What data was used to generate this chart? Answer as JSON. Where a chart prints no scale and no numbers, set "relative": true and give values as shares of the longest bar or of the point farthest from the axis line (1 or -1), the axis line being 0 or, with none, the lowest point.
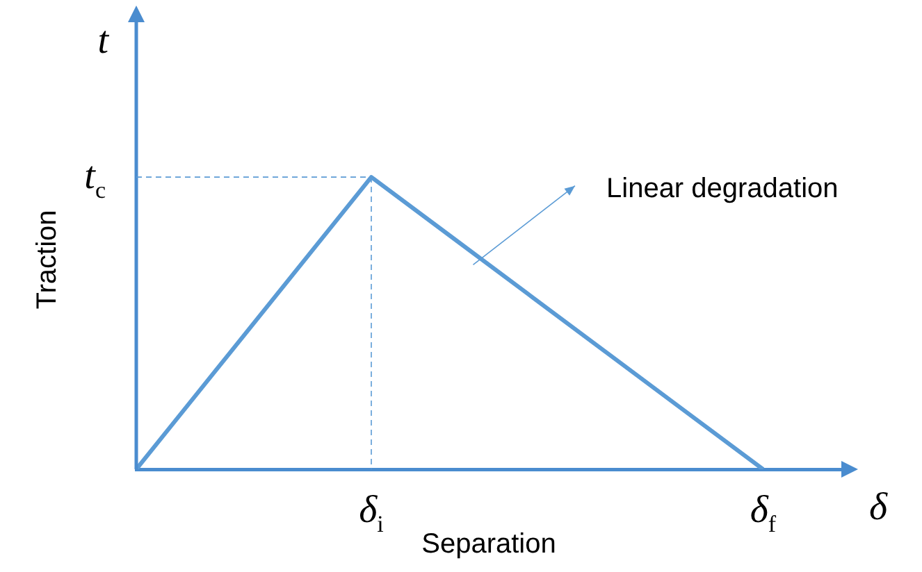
{
  "chart_data": {
    "type": "line",
    "relative": true,
    "xlabel": "Separation",
    "ylabel": "Traction",
    "categories": [
      null,
      null,
      null,
      "δ$_{i}$",
      null,
      null,
      null,
      null,
      "δ$_{f}$",
      null
    ],
    "series": [
      {
        "color": "#5b9bd5",
        "values": [
          0,
          0.3333,
          0.6667,
          1,
          0.8,
          0.6,
          0.4,
          0.2,
          0,
          null
        ]
      }
    ],
    "annotations": [
      {
        "text": "t$_{c}$",
        "x": "δ$_{i}$",
        "y": 1
      },
      "Linear degradation",
      "t",
      "δ"
    ],
    "marker": "none",
    "line_style": "solid",
    "grid": false,
    "legend": false
  }
}
